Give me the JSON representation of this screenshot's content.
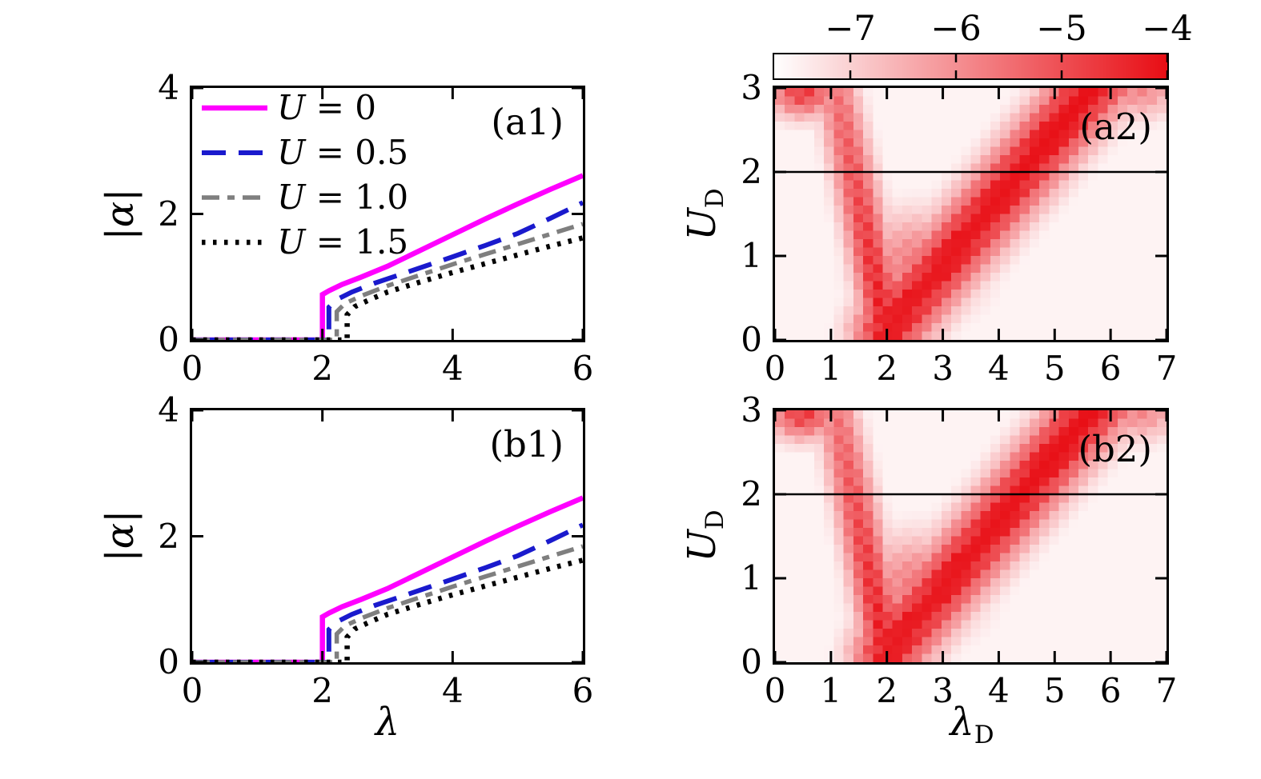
{
  "figure": {
    "background": "#ffffff"
  },
  "chart_data": [
    {
      "id": "a1",
      "type": "line",
      "panel_label": "(a1)",
      "ylabel": "|α|",
      "xlim": [
        0,
        6
      ],
      "ylim": [
        0,
        4
      ],
      "xticks": [
        0,
        2,
        4,
        6
      ],
      "yticks": [
        0,
        2,
        4
      ],
      "legend": true,
      "series": [
        {
          "name": "U = 0",
          "color": "#ff00ff",
          "style": "solid",
          "x": [
            0,
            1.0,
            1.9,
            2.0,
            2.0,
            2.1,
            2.3,
            2.6,
            3.0,
            3.5,
            4.0,
            4.5,
            5.0,
            5.5,
            6.0
          ],
          "y": [
            0,
            0,
            0,
            0,
            0.72,
            0.78,
            0.88,
            1.0,
            1.17,
            1.42,
            1.67,
            1.92,
            2.16,
            2.39,
            2.61
          ]
        },
        {
          "name": "U = 0.5",
          "color": "#1a1acd",
          "style": "dashed",
          "x": [
            0,
            1.0,
            2.0,
            2.1,
            2.1,
            2.2,
            2.45,
            2.8,
            3.2,
            3.6,
            4.0,
            4.5,
            5.0,
            5.5,
            6.0
          ],
          "y": [
            0,
            0,
            0,
            0,
            0.52,
            0.63,
            0.76,
            0.9,
            1.04,
            1.18,
            1.32,
            1.5,
            1.69,
            1.93,
            2.18
          ]
        },
        {
          "name": "U = 1.0",
          "color": "#7f7f7f",
          "style": "dashdot",
          "x": [
            0,
            1.0,
            2.0,
            2.22,
            2.22,
            2.35,
            2.6,
            3.0,
            3.5,
            4.0,
            4.5,
            5.0,
            5.5,
            6.0
          ],
          "y": [
            0,
            0,
            0,
            0,
            0.45,
            0.58,
            0.7,
            0.86,
            1.03,
            1.2,
            1.36,
            1.52,
            1.68,
            1.84
          ]
        },
        {
          "name": "U = 1.5",
          "color": "#000000",
          "style": "dotted",
          "x": [
            0,
            1.0,
            2.0,
            2.38,
            2.38,
            2.5,
            2.75,
            3.0,
            3.5,
            4.0,
            4.5,
            5.0,
            5.5,
            6.0
          ],
          "y": [
            0,
            0,
            0,
            0,
            0.4,
            0.53,
            0.65,
            0.76,
            0.92,
            1.07,
            1.21,
            1.35,
            1.49,
            1.62
          ]
        }
      ]
    },
    {
      "id": "a2",
      "type": "heatmap",
      "panel_label": "(a2)",
      "ylabel_main": "U",
      "ylabel_sub": "D",
      "xlim": [
        0,
        7
      ],
      "ylim": [
        0,
        3
      ],
      "xticks": [
        0,
        1,
        2,
        3,
        4,
        5,
        6,
        7
      ],
      "yticks": [
        0,
        1,
        2,
        3
      ],
      "hline_y": 2,
      "colorbar": {
        "range": [
          -7.72,
          -4
        ],
        "ticks": [
          -7,
          -6,
          -5,
          -4
        ]
      },
      "field": {
        "nx": 40,
        "ny": 30,
        "baseline": 0.05,
        "aniso": 1.5,
        "bands": [
          {
            "x1": 1.05,
            "y1": 3.1,
            "x2": 2.0,
            "y2": 0.1,
            "sigma": 0.38,
            "a0": 0.55,
            "a1": 0.95
          },
          {
            "x1": 2.0,
            "y1": 0.1,
            "x2": 5.8,
            "y2": 3.1,
            "sigma": 0.62,
            "a0": 0.95,
            "a1": 1.0
          }
        ],
        "blobs": [
          {
            "cx": 0.5,
            "cy": 2.95,
            "sx": 0.6,
            "sy": 0.3,
            "amp": 0.8
          },
          {
            "cx": 2.6,
            "cy": 0.9,
            "sx": 1.05,
            "sy": 0.6,
            "amp": 0.55
          },
          {
            "cx": 6.5,
            "cy": 3.0,
            "sx": 0.7,
            "sy": 0.35,
            "amp": 0.5
          }
        ]
      }
    },
    {
      "id": "b1",
      "type": "line",
      "panel_label": "(b1)",
      "xlabel": "λ",
      "ylabel": "|α|",
      "xlim": [
        0,
        6
      ],
      "ylim": [
        0,
        4
      ],
      "xticks": [
        0,
        2,
        4,
        6
      ],
      "yticks": [
        0,
        2,
        4
      ],
      "legend": false,
      "series": [
        {
          "name": "U = 0",
          "color": "#ff00ff",
          "style": "solid",
          "x": [
            0,
            1.0,
            1.9,
            2.0,
            2.0,
            2.1,
            2.3,
            2.6,
            3.0,
            3.5,
            4.0,
            4.5,
            5.0,
            5.5,
            6.0
          ],
          "y": [
            0,
            0,
            0,
            0,
            0.72,
            0.78,
            0.88,
            1.0,
            1.17,
            1.42,
            1.67,
            1.92,
            2.16,
            2.39,
            2.61
          ]
        },
        {
          "name": "U = 0.5",
          "color": "#1a1acd",
          "style": "dashed",
          "x": [
            0,
            1.0,
            2.0,
            2.1,
            2.1,
            2.2,
            2.45,
            2.8,
            3.2,
            3.6,
            4.0,
            4.5,
            5.0,
            5.5,
            6.0
          ],
          "y": [
            0,
            0,
            0,
            0,
            0.52,
            0.63,
            0.76,
            0.9,
            1.04,
            1.18,
            1.32,
            1.5,
            1.69,
            1.93,
            2.18
          ]
        },
        {
          "name": "U = 1.0",
          "color": "#7f7f7f",
          "style": "dashdot",
          "x": [
            0,
            1.0,
            2.0,
            2.22,
            2.22,
            2.35,
            2.6,
            3.0,
            3.5,
            4.0,
            4.5,
            5.0,
            5.5,
            6.0
          ],
          "y": [
            0,
            0,
            0,
            0,
            0.45,
            0.58,
            0.7,
            0.86,
            1.03,
            1.2,
            1.36,
            1.52,
            1.68,
            1.84
          ]
        },
        {
          "name": "U = 1.5",
          "color": "#000000",
          "style": "dotted",
          "x": [
            0,
            1.0,
            2.0,
            2.38,
            2.38,
            2.5,
            2.75,
            3.0,
            3.5,
            4.0,
            4.5,
            5.0,
            5.5,
            6.0
          ],
          "y": [
            0,
            0,
            0,
            0,
            0.4,
            0.53,
            0.65,
            0.76,
            0.92,
            1.07,
            1.21,
            1.35,
            1.49,
            1.62
          ]
        }
      ]
    },
    {
      "id": "b2",
      "type": "heatmap",
      "panel_label": "(b2)",
      "xlabel_main": "λ",
      "xlabel_sub": "D",
      "ylabel_main": "U",
      "ylabel_sub": "D",
      "xlim": [
        0,
        7
      ],
      "ylim": [
        0,
        3
      ],
      "xticks": [
        0,
        1,
        2,
        3,
        4,
        5,
        6,
        7
      ],
      "yticks": [
        0,
        1,
        2,
        3
      ],
      "hline_y": 2,
      "field": {
        "nx": 40,
        "ny": 30,
        "baseline": 0.05,
        "aniso": 1.5,
        "bands": [
          {
            "x1": 1.05,
            "y1": 3.1,
            "x2": 2.0,
            "y2": 0.1,
            "sigma": 0.38,
            "a0": 0.55,
            "a1": 0.95
          },
          {
            "x1": 2.0,
            "y1": 0.1,
            "x2": 5.8,
            "y2": 3.1,
            "sigma": 0.62,
            "a0": 0.95,
            "a1": 1.0
          }
        ],
        "blobs": [
          {
            "cx": 0.5,
            "cy": 2.95,
            "sx": 0.6,
            "sy": 0.3,
            "amp": 0.8
          },
          {
            "cx": 2.6,
            "cy": 0.9,
            "sx": 1.05,
            "sy": 0.6,
            "amp": 0.55
          },
          {
            "cx": 6.5,
            "cy": 3.0,
            "sx": 0.7,
            "sy": 0.35,
            "amp": 0.5
          }
        ]
      }
    }
  ]
}
